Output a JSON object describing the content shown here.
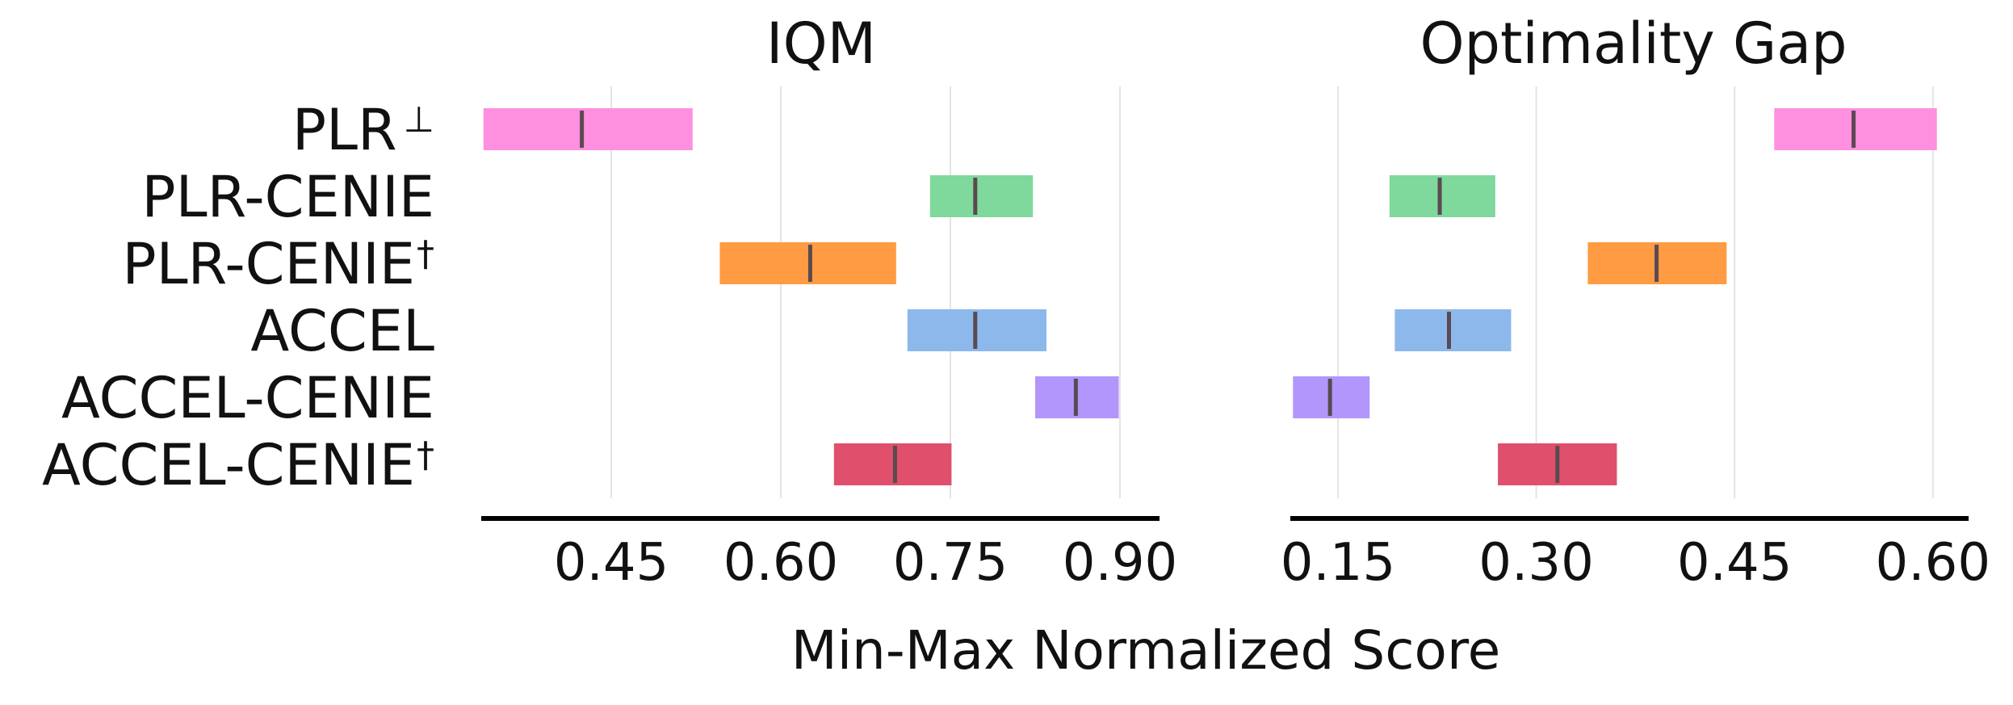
{
  "chart_data": {
    "type": "interval",
    "xlabel": "Min-Max Normalized Score",
    "categories": [
      "PLR",
      "PLR-CENIE",
      "PLR-CENIE",
      "ACCEL",
      "ACCEL-CENIE",
      "ACCEL-CENIE"
    ],
    "category_suffixes": [
      "⊥",
      "",
      "†",
      "",
      "",
      "†"
    ],
    "colors": [
      "#ff8fdf",
      "#7fd89c",
      "#ff9b42",
      "#8db8ec",
      "#b396fb",
      "#e0506c"
    ],
    "panels": [
      {
        "title": "IQM",
        "xlim": [
          0.335,
          0.935
        ],
        "ticks": [
          0.45,
          0.6,
          0.75,
          0.9
        ],
        "tick_labels": [
          "0.45",
          "0.60",
          "0.75",
          "0.90"
        ],
        "intervals": [
          {
            "low": 0.337,
            "high": 0.522,
            "point": 0.424
          },
          {
            "low": 0.732,
            "high": 0.823,
            "point": 0.772
          },
          {
            "low": 0.546,
            "high": 0.702,
            "point": 0.626
          },
          {
            "low": 0.712,
            "high": 0.835,
            "point": 0.772
          },
          {
            "low": 0.825,
            "high": 0.899,
            "point": 0.861
          },
          {
            "low": 0.647,
            "high": 0.751,
            "point": 0.701
          }
        ]
      },
      {
        "title": "Optimality Gap",
        "xlim": [
          0.114,
          0.627
        ],
        "ticks": [
          0.15,
          0.3,
          0.45,
          0.6
        ],
        "tick_labels": [
          "0.15",
          "0.30",
          "0.45",
          "0.60"
        ],
        "intervals": [
          {
            "low": 0.48,
            "high": 0.603,
            "point": 0.54
          },
          {
            "low": 0.189,
            "high": 0.269,
            "point": 0.227
          },
          {
            "low": 0.339,
            "high": 0.444,
            "point": 0.391
          },
          {
            "low": 0.193,
            "high": 0.281,
            "point": 0.234
          },
          {
            "low": 0.116,
            "high": 0.174,
            "point": 0.144
          },
          {
            "low": 0.271,
            "high": 0.361,
            "point": 0.316
          }
        ]
      }
    ]
  }
}
